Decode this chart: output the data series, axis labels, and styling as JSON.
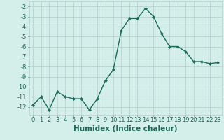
{
  "x": [
    0,
    1,
    2,
    3,
    4,
    5,
    6,
    7,
    8,
    9,
    10,
    11,
    12,
    13,
    14,
    15,
    16,
    17,
    18,
    19,
    20,
    21,
    22,
    23
  ],
  "y": [
    -11.8,
    -11.0,
    -12.3,
    -10.5,
    -11.0,
    -11.2,
    -11.2,
    -12.3,
    -11.2,
    -9.4,
    -8.3,
    -4.4,
    -3.2,
    -3.2,
    -2.2,
    -3.0,
    -4.7,
    -6.0,
    -6.0,
    -6.5,
    -7.5,
    -7.5,
    -7.7,
    -7.6
  ],
  "line_color": "#1a6b5a",
  "marker": "D",
  "marker_size": 2.0,
  "bg_color": "#d4eeea",
  "grid_color": "#b2cec9",
  "xlabel": "Humidex (Indice chaleur)",
  "ylim": [
    -12.8,
    -1.5
  ],
  "xlim": [
    -0.5,
    23.5
  ],
  "yticks": [
    -2,
    -3,
    -4,
    -5,
    -6,
    -7,
    -8,
    -9,
    -10,
    -11,
    -12
  ],
  "xticks": [
    0,
    1,
    2,
    3,
    4,
    5,
    6,
    7,
    8,
    9,
    10,
    11,
    12,
    13,
    14,
    15,
    16,
    17,
    18,
    19,
    20,
    21,
    22,
    23
  ],
  "tick_fontsize": 6.0,
  "xlabel_fontsize": 7.5,
  "line_width": 1.0
}
